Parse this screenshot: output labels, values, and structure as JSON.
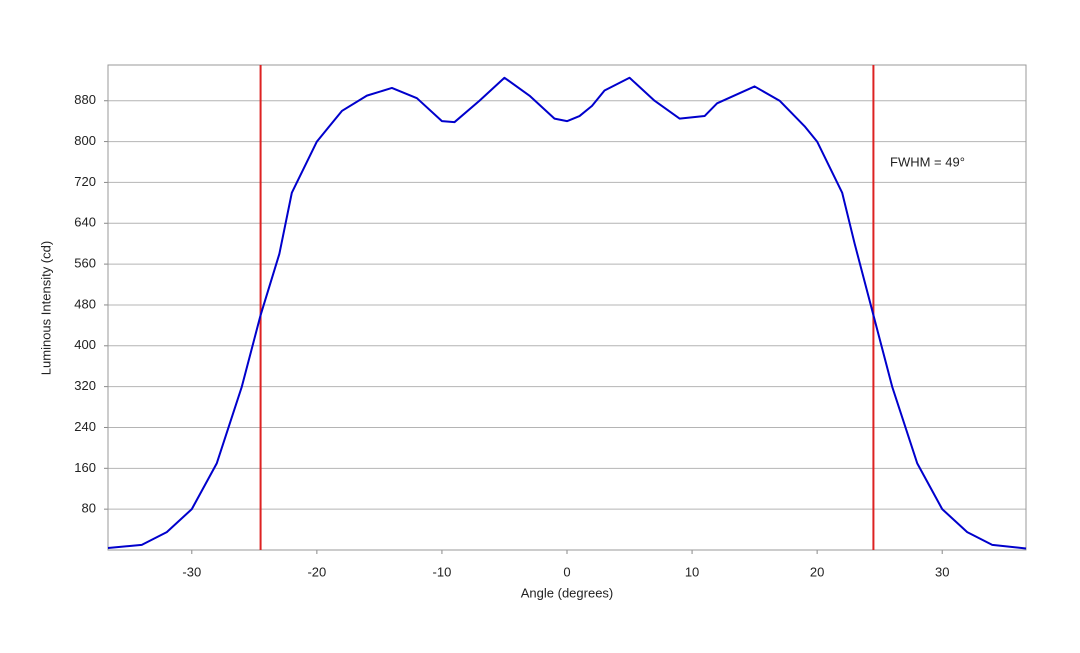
{
  "chart_data": {
    "type": "line",
    "x_label": "Angle (degrees)",
    "y_label": "Luminous Intensity (cd)",
    "annotation": "FWHM = 49°",
    "x": [
      -36.7,
      -34,
      -32,
      -30,
      -28,
      -26,
      -24.5,
      -23,
      -22,
      -20,
      -18,
      -16,
      -14,
      -12,
      -10,
      -9,
      -7,
      -5,
      -3,
      -1,
      0,
      1,
      2,
      3,
      5,
      7,
      9,
      11,
      12,
      15,
      17,
      19,
      20,
      22,
      23,
      24.5,
      26,
      28,
      30,
      32,
      34,
      36.7
    ],
    "series": [
      {
        "color": "#0000cc",
        "values": [
          4,
          10,
          35,
          80,
          170,
          320,
          460,
          580,
          700,
          800,
          860,
          890,
          905,
          885,
          840,
          838,
          880,
          925,
          890,
          845,
          840,
          850,
          870,
          900,
          925,
          880,
          845,
          850,
          875,
          908,
          880,
          830,
          800,
          700,
          600,
          460,
          320,
          170,
          80,
          35,
          10,
          3
        ]
      }
    ],
    "vlines": [
      -24.5,
      24.5
    ],
    "vline_color": "#dd2222",
    "xlim": [
      -36.7,
      36.7
    ],
    "ylim": [
      0,
      950
    ],
    "xticks": [
      -30,
      -20,
      -10,
      0,
      10,
      20,
      30
    ],
    "yticks": [
      80,
      160,
      240,
      320,
      400,
      480,
      560,
      640,
      720,
      800,
      880
    ],
    "grid": true
  }
}
